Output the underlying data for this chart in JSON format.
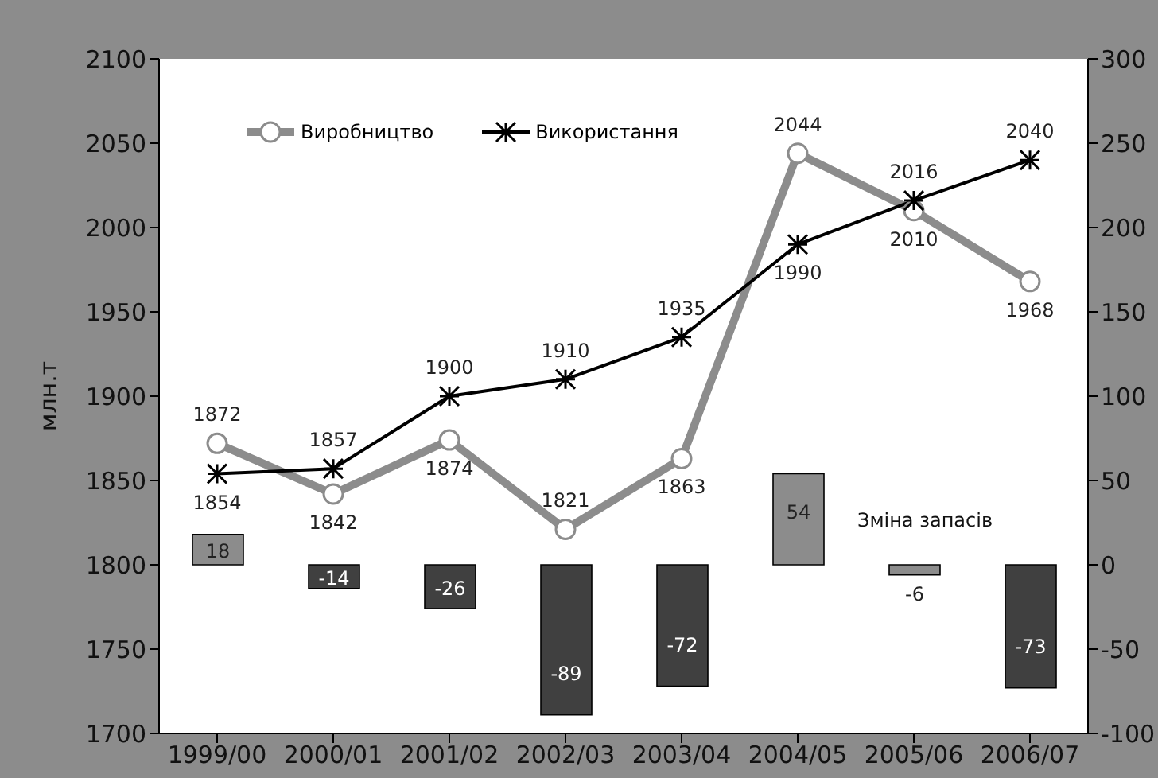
{
  "chart_data": {
    "type": "line",
    "ylabel": "млн.т",
    "categories": [
      "1999/00",
      "2000/01",
      "2001/02",
      "2002/03",
      "2003/04",
      "2004/05",
      "2005/06",
      "2006/07"
    ],
    "series": [
      {
        "name": "Виробництво",
        "color": "#8c8c8c",
        "marker": "circle",
        "values": [
          1872,
          1842,
          1874,
          1821,
          1863,
          2044,
          2010,
          1968
        ]
      },
      {
        "name": "Використання",
        "color": "#000000",
        "marker": "cross",
        "values": [
          1854,
          1857,
          1900,
          1910,
          1935,
          1990,
          2016,
          2040
        ]
      },
      {
        "name": "Зміна запасів",
        "type": "bar",
        "axis": "y2",
        "colors": [
          "#8c8c8c",
          "#404040",
          "#404040",
          "#404040",
          "#404040",
          "#8c8c8c",
          "#8c8c8c",
          "#404040"
        ],
        "values": [
          18,
          -14,
          -26,
          -89,
          -72,
          54,
          -6,
          -73
        ]
      }
    ],
    "ylim": [
      1700,
      2100
    ],
    "yticks": [
      1700,
      1750,
      1800,
      1850,
      1900,
      1950,
      2000,
      2050,
      2100
    ],
    "y2lim": [
      -100,
      300
    ],
    "y2ticks": [
      -100,
      -50,
      0,
      50,
      100,
      150,
      200,
      250,
      300
    ],
    "data_labels": true,
    "grid": false,
    "legend": "top left"
  }
}
